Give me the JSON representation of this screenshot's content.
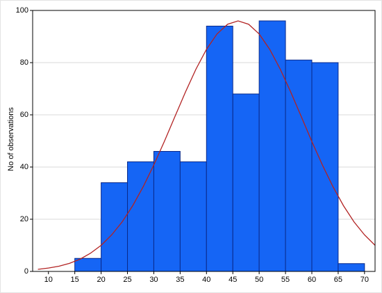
{
  "chart_data": {
    "type": "histogram",
    "y_label": "No of observations",
    "bins": [
      15,
      20,
      25,
      30,
      35,
      40,
      45,
      50,
      55,
      60,
      65,
      70
    ],
    "values": [
      5,
      34,
      42,
      46,
      42,
      94,
      68,
      96,
      81,
      80,
      3
    ],
    "color": "#1565f5",
    "curve": {
      "color": "#b22222",
      "x": [
        8,
        10,
        12,
        14,
        16,
        18,
        20,
        22,
        24,
        26,
        28,
        30,
        32,
        34,
        36,
        38,
        40,
        42,
        44,
        46,
        48,
        50,
        52,
        54,
        56,
        58,
        60,
        62,
        64,
        66,
        68,
        70,
        72
      ],
      "y": [
        0.8,
        1.3,
        2.0,
        3.1,
        4.7,
        7.0,
        10.0,
        14.0,
        19.0,
        25.2,
        32.5,
        40.8,
        49.8,
        59.3,
        68.7,
        77.5,
        85.1,
        91.0,
        94.7,
        96,
        94.7,
        91.0,
        85.1,
        77.5,
        68.7,
        59.3,
        49.8,
        40.8,
        32.5,
        25.2,
        19.0,
        14.0,
        10.0
      ]
    },
    "xlim": [
      7,
      72
    ],
    "ylim": [
      0,
      100
    ],
    "xticks": [
      10,
      15,
      20,
      25,
      30,
      35,
      40,
      45,
      50,
      55,
      60,
      65,
      70
    ],
    "yticks": [
      0,
      20,
      40,
      60,
      80,
      100
    ],
    "grid": true
  }
}
